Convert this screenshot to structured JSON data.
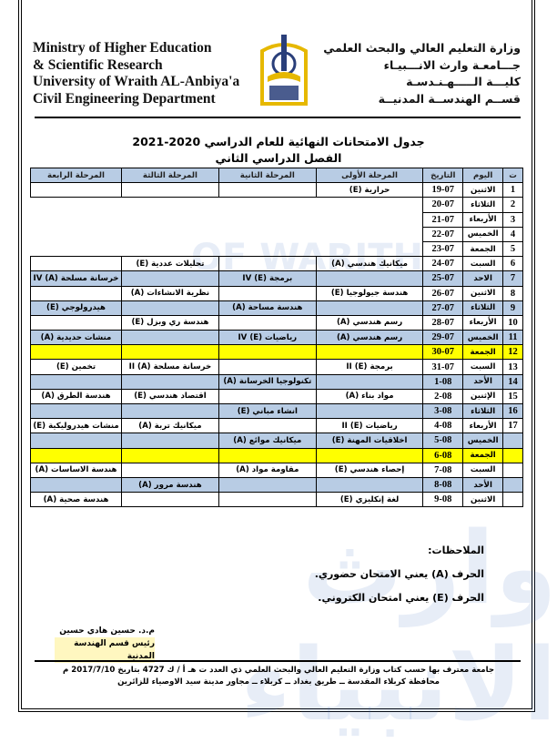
{
  "header": {
    "english_lines": [
      "Ministry of Higher Education",
      "& Scientific Research",
      "University of Wraith AL-Anbiya'a",
      "Civil Engineering Department"
    ],
    "arabic_lines": [
      "وزارة التعليم العالي والبحث العلمي",
      "جـــامعـة وارث الانـــبيـاء",
      "كليـــة الـــــهـنـدسـة",
      "قســم الهندســة المدنيــة"
    ],
    "logo_text": "وارث الانبياء 2017"
  },
  "title": {
    "line1": "جدول الامتحانات النهائية للعام الدراسي 2020-2021",
    "line2": "الفصل الدراسي الثاني"
  },
  "colors": {
    "header_blue": "#b8cce4",
    "holiday_yellow": "#ffff00"
  },
  "table": {
    "headers": [
      "ت",
      "اليوم",
      "التاريخ",
      "المرحلة الأولى",
      "المرحلة الثانية",
      "المرحلة الثالثة",
      "المرحلة الرابعة"
    ],
    "rows": [
      {
        "n": "1",
        "day": "الاثنين",
        "date": "19-07",
        "s1": "حرارية (E)",
        "s2": "",
        "s3": "",
        "s4": "",
        "style": ""
      },
      {
        "n": "2",
        "day": "الثلاثاء",
        "date": "20-07",
        "merged": true,
        "style": ""
      },
      {
        "n": "3",
        "day": "الأربعاء",
        "date": "21-07",
        "merged": true,
        "style": ""
      },
      {
        "n": "4",
        "day": "الخميس",
        "date": "22-07",
        "merged": true,
        "style": ""
      },
      {
        "n": "5",
        "day": "الجمعة",
        "date": "23-07",
        "merged": true,
        "style": ""
      },
      {
        "n": "6",
        "day": "السبت",
        "date": "24-07",
        "s1": "ميكانيك هندسي (A)",
        "s2": "",
        "s3": "تحليلات عددية (E)",
        "s4": "",
        "style": ""
      },
      {
        "n": "7",
        "day": "الاحد",
        "date": "25-07",
        "s1": "",
        "s2": "برمجة IV (E)",
        "s3": "",
        "s4": "خرسانة مسلحة IV (A)",
        "style": "blue"
      },
      {
        "n": "8",
        "day": "الاثنين",
        "date": "26-07",
        "s1": "هندسة جيولوجيا (E)",
        "s2": "",
        "s3": "نظرية الانشاءات (A)",
        "s4": "",
        "style": ""
      },
      {
        "n": "9",
        "day": "الثلاثاء",
        "date": "27-07",
        "s1": "",
        "s2": "هندسة مساحة (A)",
        "s3": "",
        "s4": "هيدرولوجي (E)",
        "style": "blue"
      },
      {
        "n": "10",
        "day": "الأربعاء",
        "date": "28-07",
        "s1": "رسم هندسي (A)",
        "s2": "",
        "s3": "هندسة ري وبزل (E)",
        "s4": "",
        "style": ""
      },
      {
        "n": "11",
        "day": "الخميس",
        "date": "29-07",
        "s1": "رسم هندسي (A)",
        "s2": "رياضيات IV (E)",
        "s3": "",
        "s4": "منشات حديدية (A)",
        "style": "blue"
      },
      {
        "n": "12",
        "day": "الجمعة",
        "date": "30-07",
        "s1": "",
        "s2": "",
        "s3": "",
        "s4": "",
        "style": "yellow"
      },
      {
        "n": "13",
        "day": "السبت",
        "date": "31-07",
        "s1": "برمجة II (E)",
        "s2": "",
        "s3": "خرسانة مسلحة II (A)",
        "s4": "تخمين (E)",
        "style": ""
      },
      {
        "n": "14",
        "day": "الأحد",
        "date": "1-08",
        "s1": "",
        "s2": "تكنولوجيا الخرسانة (A)",
        "s3": "",
        "s4": "",
        "style": "blue"
      },
      {
        "n": "15",
        "day": "الإثنين",
        "date": "2-08",
        "s1": "مواد بناء (A)",
        "s2": "",
        "s3": "اقتصاد هندسي (E)",
        "s4": "هندسة الطرق (A)",
        "style": ""
      },
      {
        "n": "16",
        "day": "الثلاثاء",
        "date": "3-08",
        "s1": "",
        "s2": "انشاء مباني (E)",
        "s3": "",
        "s4": "",
        "style": "blue"
      },
      {
        "n": "17",
        "day": "الأربعاء",
        "date": "4-08",
        "s1": "رياضيات II (E)",
        "s2": "",
        "s3": "ميكانيك تربة (A)",
        "s4": "منشات هيدروليكية (E)",
        "style": ""
      },
      {
        "n": "",
        "day": "الخميس",
        "date": "5-08",
        "s1": "اخلاقيات المهنة (E)",
        "s2": "ميكانيك موائع (A)",
        "s3": "",
        "s4": "",
        "style": "blue"
      },
      {
        "n": "",
        "day": "الجمعة",
        "date": "6-08",
        "s1": "",
        "s2": "",
        "s3": "",
        "s4": "",
        "style": "yellow"
      },
      {
        "n": "",
        "day": "السبت",
        "date": "7-08",
        "s1": "إحصاء هندسي (E)",
        "s2": "مقاومة مواد (A)",
        "s3": "",
        "s4": "هندسة الاساسات (A)",
        "style": ""
      },
      {
        "n": "",
        "day": "الأحد",
        "date": "8-08",
        "s1": "",
        "s2": "",
        "s3": "هندسة مرور (A)",
        "s4": "",
        "style": "blue"
      },
      {
        "n": "",
        "day": "الاثنين",
        "date": "9-08",
        "s1": "لغة إنكليزي (E)",
        "s2": "",
        "s3": "",
        "s4": "هندسة صحية (A)",
        "style": ""
      }
    ]
  },
  "notes": {
    "heading": "الملاحظات:",
    "items": [
      "الحرف (A) يعني الامتحان حضوري.",
      "الحرف (E) يعني امتحان الكتروني."
    ]
  },
  "signature": {
    "name": "م.د. حسين هادي حسين",
    "role": "رئيس قسم الهندسة المدنية"
  },
  "footer": {
    "line1": "جامعة معترف بها حسب كتاب وزارة التعليم العالي والبحث العلمي ذي العدد ت هـ أ / ك 4727 بتاريخ 2017/7/10 م",
    "line2": "محافظة كربلاء المقدسة ــ طريق بغداد ــ كربلاء ــ مجاور مدينة سيد الاوصياء للزائرين"
  }
}
